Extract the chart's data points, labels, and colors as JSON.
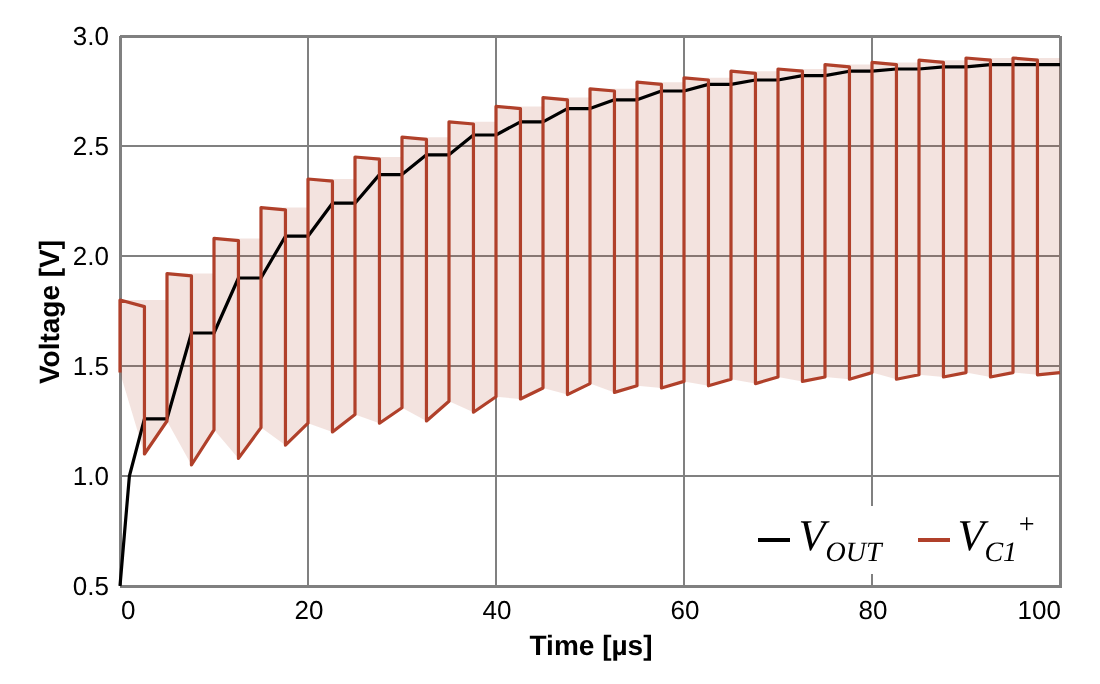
{
  "chart_data": {
    "type": "line",
    "xlabel": "Time [µs]",
    "ylabel": "Voltage [V]",
    "xlim": [
      0,
      100
    ],
    "xticks": [
      0,
      20,
      40,
      60,
      80,
      100
    ],
    "ylim": [
      0.5,
      3.0
    ],
    "yticks": [
      0.5,
      {
        "value": 1.0,
        "label": "1.0"
      },
      1.5,
      {
        "value": 2.0,
        "label": "2.0"
      },
      2.5,
      {
        "value": 3.0,
        "label": "3.0"
      }
    ],
    "grid": true,
    "legend": "bottom right",
    "marker": "none",
    "series": [
      {
        "name": "V$_{OUT}$",
        "color": "#000000",
        "x": [
          0,
          1,
          2.6,
          5,
          7.6,
          10,
          12.6,
          15,
          17.6,
          20,
          22.6,
          25,
          27.6,
          30,
          32.6,
          35,
          37.6,
          40,
          42.6,
          45,
          47.6,
          50,
          52.6,
          55,
          57.6,
          60,
          62.6,
          65,
          67.6,
          70,
          72.6,
          75,
          77.6,
          80,
          82.6,
          85,
          87.6,
          90,
          92.6,
          95,
          97.6,
          100
        ],
        "values": [
          0.5,
          1.0,
          1.26,
          1.26,
          1.65,
          1.65,
          1.9,
          1.9,
          2.09,
          2.09,
          2.24,
          2.24,
          2.37,
          2.37,
          2.46,
          2.46,
          2.55,
          2.55,
          2.61,
          2.61,
          2.67,
          2.67,
          2.71,
          2.71,
          2.75,
          2.75,
          2.78,
          2.78,
          2.8,
          2.8,
          2.82,
          2.82,
          2.84,
          2.84,
          2.85,
          2.85,
          2.86,
          2.86,
          2.87,
          2.87,
          2.87,
          2.87
        ]
      },
      {
        "name": "V$_{C1}$$^{+}$",
        "color": "#b0402a",
        "x": [
          0,
          0,
          2.6,
          2.6,
          5,
          5,
          7.6,
          7.6,
          10,
          10,
          12.6,
          12.6,
          15,
          15,
          17.6,
          17.6,
          20,
          20,
          22.6,
          22.6,
          25,
          25,
          27.6,
          27.6,
          30,
          30,
          32.6,
          32.6,
          35,
          35,
          37.6,
          37.6,
          40,
          40,
          42.6,
          42.6,
          45,
          45,
          47.6,
          47.6,
          50,
          50,
          52.6,
          52.6,
          55,
          55,
          57.6,
          57.6,
          60,
          60,
          62.6,
          62.6,
          65,
          65,
          67.6,
          67.6,
          70,
          70,
          72.6,
          72.6,
          75,
          75,
          77.6,
          77.6,
          80,
          80,
          82.6,
          82.6,
          85,
          85,
          87.6,
          87.6,
          90,
          90,
          92.6,
          92.6,
          95,
          95,
          97.6,
          97.6,
          100
        ],
        "values": [
          1.47,
          1.8,
          1.77,
          1.1,
          1.25,
          1.92,
          1.91,
          1.05,
          1.21,
          2.08,
          2.07,
          1.08,
          1.22,
          2.22,
          2.21,
          1.14,
          1.24,
          2.35,
          2.34,
          1.2,
          1.28,
          2.45,
          2.44,
          1.24,
          1.31,
          2.54,
          2.53,
          1.25,
          1.34,
          2.61,
          2.6,
          1.29,
          1.36,
          2.68,
          2.67,
          1.35,
          1.4,
          2.72,
          2.71,
          1.37,
          1.42,
          2.76,
          2.75,
          1.38,
          1.41,
          2.79,
          2.78,
          1.4,
          1.43,
          2.81,
          2.8,
          1.41,
          1.44,
          2.84,
          2.83,
          1.42,
          1.45,
          2.85,
          2.84,
          1.43,
          1.45,
          2.87,
          2.86,
          1.44,
          1.47,
          2.88,
          2.87,
          1.44,
          1.46,
          2.89,
          2.88,
          1.45,
          1.47,
          2.9,
          2.89,
          1.45,
          1.47,
          2.9,
          2.89,
          1.46,
          1.47
        ],
        "lower": [
          1.47,
          1.47,
          1.1,
          1.1,
          1.25,
          1.25,
          1.05,
          1.05,
          1.21,
          1.21,
          1.08,
          1.08,
          1.22,
          1.22,
          1.14,
          1.14,
          1.24,
          1.24,
          1.2,
          1.2,
          1.28,
          1.28,
          1.24,
          1.24,
          1.31,
          1.31,
          1.25,
          1.25,
          1.34,
          1.34,
          1.29,
          1.29,
          1.36,
          1.36,
          1.35,
          1.35,
          1.4,
          1.4,
          1.37,
          1.37,
          1.42,
          1.42,
          1.38,
          1.38,
          1.41,
          1.41,
          1.4,
          1.4,
          1.43,
          1.43,
          1.41,
          1.41,
          1.44,
          1.44,
          1.42,
          1.42,
          1.45,
          1.45,
          1.43,
          1.43,
          1.45,
          1.45,
          1.44,
          1.44,
          1.47,
          1.47,
          1.44,
          1.44,
          1.46,
          1.46,
          1.45,
          1.45,
          1.47,
          1.47,
          1.45,
          1.45,
          1.47,
          1.47,
          1.46,
          1.46,
          1.47
        ],
        "upper": [
          1.8,
          1.8,
          1.8,
          1.8,
          1.8,
          1.92,
          1.92,
          1.92,
          1.92,
          2.08,
          2.08,
          2.08,
          2.08,
          2.22,
          2.22,
          2.22,
          2.22,
          2.35,
          2.35,
          2.35,
          2.35,
          2.45,
          2.45,
          2.45,
          2.45,
          2.54,
          2.54,
          2.54,
          2.54,
          2.61,
          2.61,
          2.61,
          2.61,
          2.68,
          2.68,
          2.68,
          2.68,
          2.72,
          2.72,
          2.72,
          2.72,
          2.76,
          2.76,
          2.76,
          2.76,
          2.79,
          2.79,
          2.79,
          2.79,
          2.81,
          2.81,
          2.81,
          2.81,
          2.84,
          2.84,
          2.84,
          2.84,
          2.85,
          2.85,
          2.85,
          2.85,
          2.87,
          2.87,
          2.87,
          2.87,
          2.88,
          2.88,
          2.88,
          2.88,
          2.89,
          2.89,
          2.89,
          2.89,
          2.9,
          2.9,
          2.9,
          2.9,
          2.9,
          2.9,
          2.9,
          2.9
        ]
      }
    ]
  }
}
